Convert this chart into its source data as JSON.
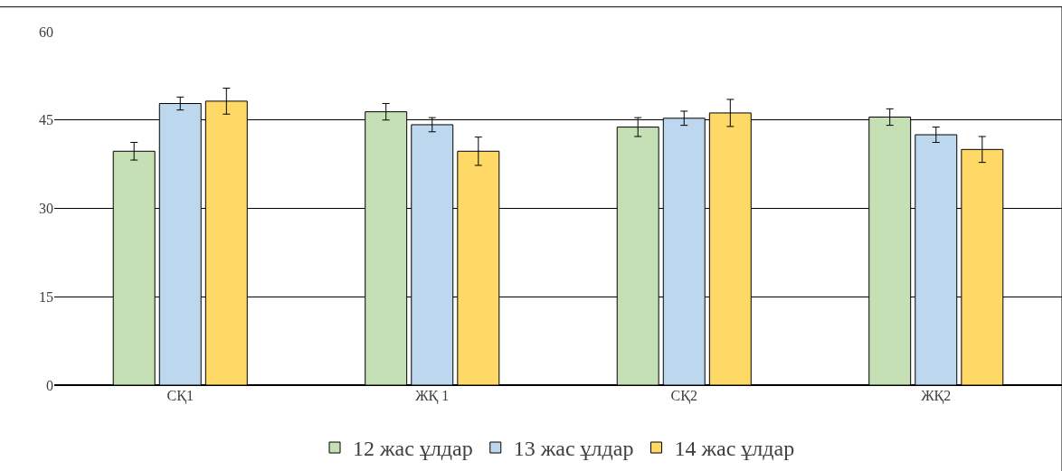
{
  "chart_data": {
    "type": "bar",
    "categories": [
      "СҚ1",
      "ЖҚ 1",
      "СҚ2",
      "ЖҚ2"
    ],
    "series": [
      {
        "name": "12 жас ұлдар",
        "color": "#c5e0b4",
        "values": [
          39.7,
          46.4,
          43.8,
          45.5
        ],
        "errors": [
          1.5,
          1.4,
          1.6,
          1.4
        ]
      },
      {
        "name": "13 жас ұлдар",
        "color": "#bdd7ee",
        "values": [
          47.8,
          44.2,
          45.3,
          42.5
        ],
        "errors": [
          1.1,
          1.2,
          1.2,
          1.3
        ]
      },
      {
        "name": "14 жас ұлдар",
        "color": "#ffd966",
        "values": [
          48.2,
          39.7,
          46.2,
          40.0
        ],
        "errors": [
          2.2,
          2.4,
          2.3,
          2.2
        ]
      }
    ],
    "ylim": [
      0,
      60
    ],
    "yticks": [
      0,
      15,
      30,
      45,
      60
    ],
    "grid": "y",
    "legend": "bottom"
  }
}
